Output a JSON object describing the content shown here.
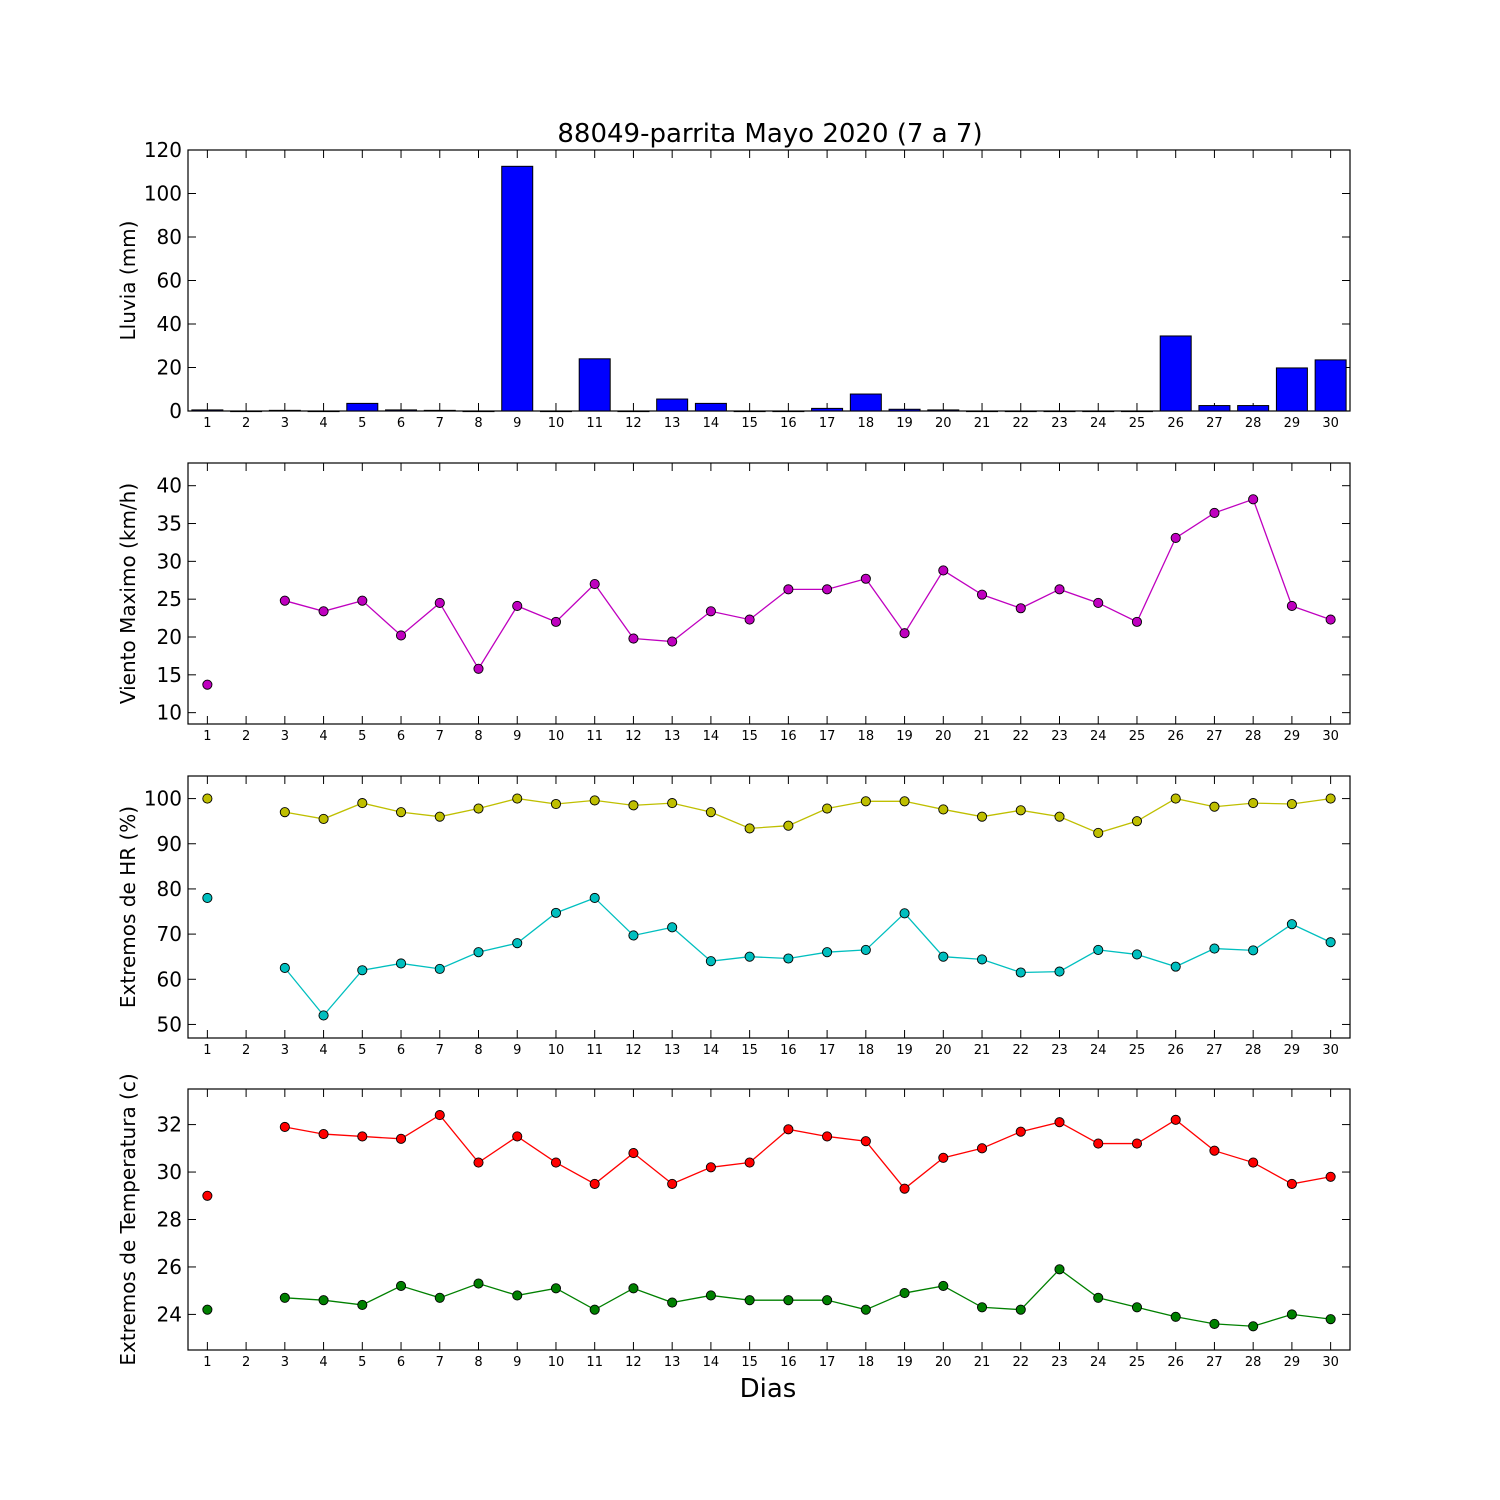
{
  "title": "88049-parrita Mayo 2020  (7 a 7)",
  "xlabel": "Dias",
  "colors": {
    "rain_bar": "#0000ff",
    "wind": "#bf00bf",
    "hr_max": "#bfbf00",
    "hr_min": "#00bfbf",
    "temp_max": "#ff0000",
    "temp_min": "#008000"
  },
  "chart_data": [
    {
      "type": "bar",
      "ylabel": "Lluvia (mm)",
      "ylim": [
        0,
        120
      ],
      "yticks": [
        0,
        20,
        40,
        60,
        80,
        100,
        120
      ],
      "x": [
        1,
        2,
        3,
        4,
        5,
        6,
        7,
        8,
        9,
        10,
        11,
        12,
        13,
        14,
        15,
        16,
        17,
        18,
        19,
        20,
        21,
        22,
        23,
        24,
        25,
        26,
        27,
        28,
        29,
        30
      ],
      "series": [
        {
          "values": [
            0.5,
            0,
            0.3,
            0,
            3.5,
            0.5,
            0.3,
            0,
            112.5,
            0,
            24,
            0,
            5.5,
            3.5,
            0,
            0,
            1.2,
            7.8,
            0.8,
            0.5,
            0,
            0,
            0,
            0,
            0,
            34.5,
            2.5,
            2.5,
            19.8,
            23.5
          ]
        }
      ],
      "grid": false
    },
    {
      "type": "line",
      "ylabel": "Viento Maximo (km/h)",
      "ylim": [
        8.5,
        43
      ],
      "yticks": [
        10,
        15,
        20,
        25,
        30,
        35,
        40
      ],
      "x": [
        1,
        2,
        3,
        4,
        5,
        6,
        7,
        8,
        9,
        10,
        11,
        12,
        13,
        14,
        15,
        16,
        17,
        18,
        19,
        20,
        21,
        22,
        23,
        24,
        25,
        26,
        27,
        28,
        29,
        30
      ],
      "series": [
        {
          "values": [
            13.7,
            null,
            24.8,
            23.4,
            24.8,
            20.2,
            24.5,
            15.8,
            24.1,
            22.0,
            27.0,
            19.8,
            19.4,
            23.4,
            22.3,
            26.3,
            26.3,
            27.7,
            20.5,
            28.8,
            25.6,
            23.8,
            26.3,
            24.5,
            22.0,
            33.1,
            36.4,
            38.2,
            24.1,
            22.3
          ]
        }
      ],
      "grid": false
    },
    {
      "type": "line",
      "ylabel": "Extremos de HR (%)",
      "ylim": [
        47,
        105
      ],
      "yticks": [
        50,
        60,
        70,
        80,
        90,
        100
      ],
      "x": [
        1,
        2,
        3,
        4,
        5,
        6,
        7,
        8,
        9,
        10,
        11,
        12,
        13,
        14,
        15,
        16,
        17,
        18,
        19,
        20,
        21,
        22,
        23,
        24,
        25,
        26,
        27,
        28,
        29,
        30
      ],
      "series": [
        {
          "values": [
            100,
            null,
            97,
            95.5,
            99,
            97,
            96,
            97.8,
            100,
            98.8,
            99.6,
            98.5,
            99,
            97,
            93.4,
            94,
            97.8,
            99.4,
            99.4,
            97.6,
            96,
            97.4,
            96,
            92.4,
            95,
            100,
            98.2,
            99,
            98.8,
            100
          ]
        },
        {
          "values": [
            78,
            null,
            62.5,
            52,
            62,
            63.5,
            62.3,
            66,
            68,
            74.7,
            78,
            69.7,
            71.5,
            64,
            65,
            64.6,
            66,
            66.5,
            74.6,
            65,
            64.4,
            61.5,
            61.7,
            66.5,
            65.5,
            62.8,
            66.8,
            66.4,
            72.2,
            68.2
          ]
        }
      ],
      "grid": false
    },
    {
      "type": "line",
      "ylabel": "Extremos de Temperatura (c)",
      "ylim": [
        22.5,
        33.5
      ],
      "yticks": [
        24,
        26,
        28,
        30,
        32
      ],
      "x": [
        1,
        2,
        3,
        4,
        5,
        6,
        7,
        8,
        9,
        10,
        11,
        12,
        13,
        14,
        15,
        16,
        17,
        18,
        19,
        20,
        21,
        22,
        23,
        24,
        25,
        26,
        27,
        28,
        29,
        30
      ],
      "series": [
        {
          "values": [
            29.0,
            null,
            31.9,
            31.6,
            31.5,
            31.4,
            32.4,
            30.4,
            31.5,
            30.4,
            29.5,
            30.8,
            29.5,
            30.2,
            30.4,
            31.8,
            31.5,
            31.3,
            29.3,
            30.6,
            31.0,
            31.7,
            32.1,
            31.2,
            31.2,
            32.2,
            30.9,
            30.4,
            29.5,
            29.8
          ]
        },
        {
          "values": [
            24.2,
            null,
            24.7,
            24.6,
            24.4,
            25.2,
            24.7,
            25.3,
            24.8,
            25.1,
            24.2,
            25.1,
            24.5,
            24.8,
            24.6,
            24.6,
            24.6,
            24.2,
            24.9,
            25.2,
            24.3,
            24.2,
            25.9,
            24.7,
            24.3,
            23.9,
            23.6,
            23.5,
            24.0,
            23.8
          ]
        }
      ],
      "grid": false
    }
  ]
}
